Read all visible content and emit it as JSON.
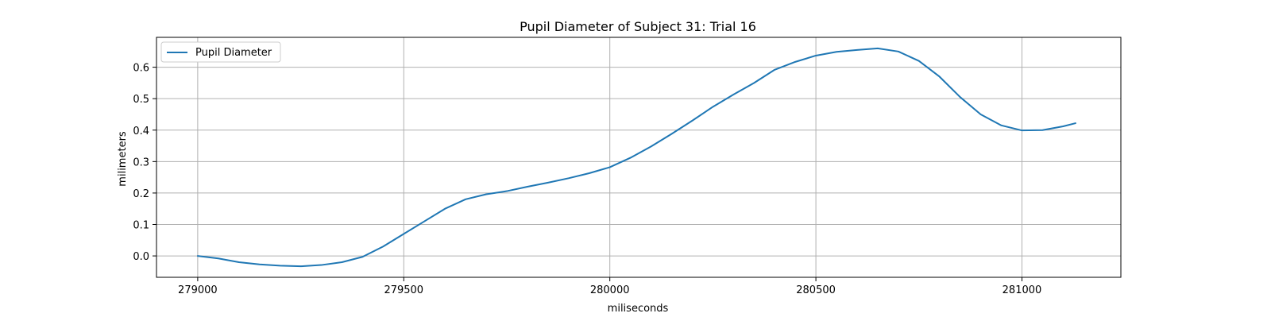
{
  "chart_data": {
    "type": "line",
    "title": "Pupil Diameter of Subject 31: Trial 16",
    "xlabel": "miliseconds",
    "ylabel": "milimeters",
    "xlim": [
      278900,
      281240
    ],
    "ylim": [
      -0.068,
      0.695
    ],
    "xticks": [
      279000,
      279500,
      280000,
      280500,
      281000
    ],
    "xtick_labels": [
      "279000",
      "279500",
      "280000",
      "280500",
      "281000"
    ],
    "yticks": [
      0.0,
      0.1,
      0.2,
      0.3,
      0.4,
      0.5,
      0.6
    ],
    "ytick_labels": [
      "0.0",
      "0.1",
      "0.2",
      "0.3",
      "0.4",
      "0.5",
      "0.6"
    ],
    "grid": true,
    "legend_position": "top-left",
    "series": [
      {
        "name": "Pupil Diameter",
        "color": "#1f77b4",
        "x": [
          279000,
          279050,
          279100,
          279150,
          279200,
          279250,
          279300,
          279350,
          279400,
          279450,
          279500,
          279550,
          279600,
          279650,
          279700,
          279750,
          279800,
          279850,
          279900,
          279950,
          280000,
          280050,
          280100,
          280150,
          280200,
          280250,
          280300,
          280350,
          280400,
          280450,
          280500,
          280550,
          280600,
          280650,
          280700,
          280750,
          280800,
          280850,
          280900,
          280950,
          281000,
          281050,
          281100,
          281130
        ],
        "y": [
          0.0,
          -0.008,
          -0.02,
          -0.027,
          -0.031,
          -0.033,
          -0.029,
          -0.02,
          -0.003,
          0.03,
          0.07,
          0.11,
          0.15,
          0.18,
          0.196,
          0.206,
          0.22,
          0.233,
          0.247,
          0.263,
          0.282,
          0.312,
          0.348,
          0.388,
          0.43,
          0.474,
          0.513,
          0.55,
          0.592,
          0.617,
          0.637,
          0.649,
          0.655,
          0.66,
          0.65,
          0.62,
          0.57,
          0.505,
          0.45,
          0.415,
          0.399,
          0.4,
          0.412,
          0.422
        ]
      }
    ]
  }
}
